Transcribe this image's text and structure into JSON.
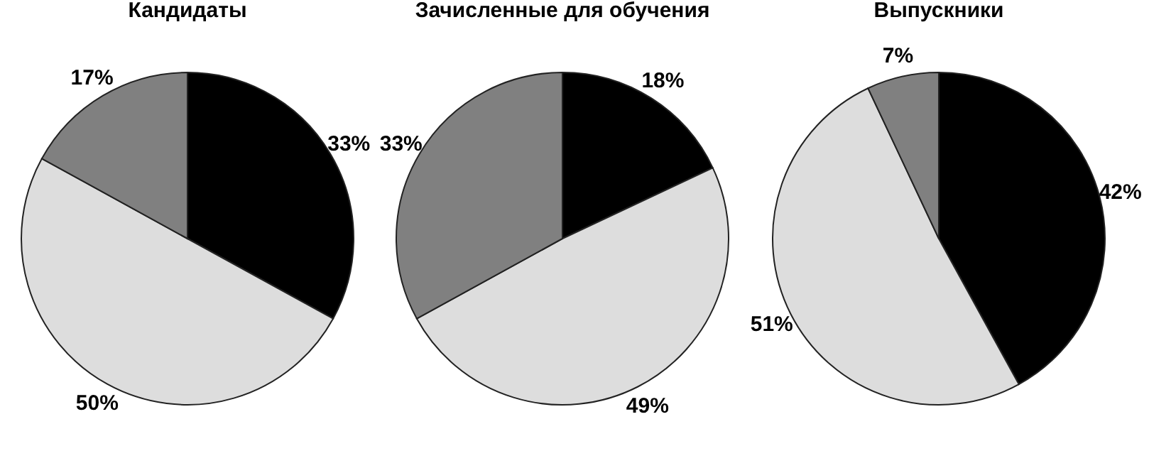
{
  "chart_data": [
    {
      "type": "pie",
      "title": "Кандидаты",
      "categories": [
        null,
        null,
        null
      ],
      "values": [
        33,
        50,
        17
      ],
      "colors": [
        "#000000",
        "#dddddd",
        "#808080"
      ],
      "value_labels": [
        "33%",
        "50%",
        "17%"
      ]
    },
    {
      "type": "pie",
      "title": "Зачисленные для обучения",
      "categories": [
        null,
        null,
        null
      ],
      "values": [
        18,
        49,
        33
      ],
      "colors": [
        "#000000",
        "#dddddd",
        "#808080"
      ],
      "value_labels": [
        "18%",
        "49%",
        "33%"
      ]
    },
    {
      "type": "pie",
      "title": "Выпускники",
      "categories": [
        null,
        null,
        null
      ],
      "values": [
        42,
        51,
        7
      ],
      "colors": [
        "#000000",
        "#dddddd",
        "#808080"
      ],
      "value_labels": [
        "42%",
        "51%",
        "7%"
      ]
    }
  ]
}
